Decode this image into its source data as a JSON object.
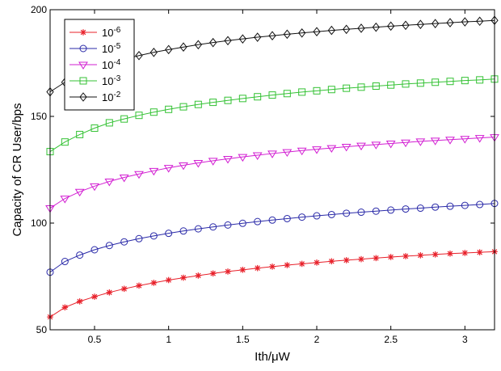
{
  "chart_data": {
    "type": "line",
    "title": "",
    "xlabel": "Ith/μW",
    "ylabel": "Capacity of CR User/bps",
    "xlim": [
      0.2,
      3.2
    ],
    "ylim": [
      50,
      200
    ],
    "xticks": [
      0.5,
      1,
      1.5,
      2,
      2.5,
      3
    ],
    "xtick_labels": [
      "0.5",
      "1",
      "1.5",
      "2",
      "2.5",
      "3"
    ],
    "yticks": [
      50,
      100,
      150,
      200
    ],
    "ytick_labels": [
      "50",
      "100",
      "150",
      "200"
    ],
    "grid": false,
    "legend_position": "top-left",
    "x": [
      0.2,
      0.3,
      0.4,
      0.5,
      0.6,
      0.7,
      0.8,
      0.9,
      1.0,
      1.1,
      1.2,
      1.3,
      1.4,
      1.5,
      1.6,
      1.7,
      1.8,
      1.9,
      2.0,
      2.1,
      2.2,
      2.3,
      2.4,
      2.5,
      2.6,
      2.7,
      2.8,
      2.9,
      3.0,
      3.1,
      3.2
    ],
    "series": [
      {
        "name": "10^-6",
        "color": "#e8202a",
        "marker": "star",
        "values": [
          56,
          60.5,
          63.3,
          65.5,
          67.5,
          69.2,
          70.7,
          72,
          73.3,
          74.4,
          75.4,
          76.4,
          77.3,
          78.1,
          78.9,
          79.6,
          80.3,
          80.9,
          81.5,
          82.1,
          82.6,
          83.1,
          83.6,
          84.1,
          84.5,
          84.9,
          85.3,
          85.7,
          86,
          86.3,
          86.6
        ]
      },
      {
        "name": "10^-5",
        "color": "#2a2aa8",
        "marker": "circle",
        "values": [
          77,
          82,
          85,
          87.5,
          89.5,
          91.2,
          92.7,
          94,
          95.2,
          96.3,
          97.3,
          98.2,
          99.1,
          99.9,
          100.7,
          101.4,
          102.1,
          102.8,
          103.4,
          104,
          104.6,
          105.1,
          105.6,
          106.1,
          106.6,
          107,
          107.5,
          107.9,
          108.3,
          108.7,
          109.2
        ]
      },
      {
        "name": "10^-4",
        "color": "#d21fd2",
        "marker": "triangle-down",
        "values": [
          107,
          111.5,
          114.7,
          117.3,
          119.5,
          121.4,
          123,
          124.5,
          125.9,
          127.1,
          128.2,
          129.2,
          130.1,
          131,
          131.8,
          132.6,
          133.3,
          134,
          134.6,
          135.2,
          135.8,
          136.3,
          136.8,
          137.3,
          137.8,
          138.3,
          138.7,
          139.1,
          139.5,
          139.9,
          140.3
        ]
      },
      {
        "name": "10^-3",
        "color": "#34c234",
        "marker": "square",
        "values": [
          133.5,
          138,
          141.5,
          144.5,
          147,
          148.8,
          150.5,
          152,
          153.3,
          154.5,
          155.6,
          156.6,
          157.5,
          158.4,
          159.2,
          160,
          160.7,
          161.4,
          162,
          162.6,
          163.2,
          163.7,
          164.2,
          164.7,
          165.2,
          165.6,
          166,
          166.4,
          166.8,
          167.1,
          167.5
        ]
      },
      {
        "name": "10^-2",
        "color": "#111111",
        "marker": "diamond",
        "values": [
          161.5,
          166,
          169.5,
          172.5,
          175,
          176.8,
          178.5,
          180,
          181.3,
          182.5,
          183.6,
          184.6,
          185.5,
          186.3,
          187.1,
          187.8,
          188.5,
          189.1,
          189.7,
          190.3,
          190.8,
          191.3,
          191.8,
          192.3,
          192.7,
          193.1,
          193.5,
          193.9,
          194.3,
          194.6,
          195
        ]
      }
    ]
  }
}
